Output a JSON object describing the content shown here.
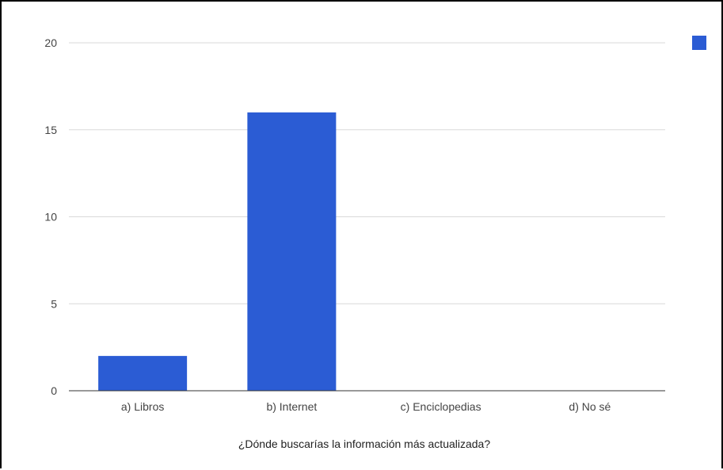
{
  "chart_data": {
    "type": "bar",
    "categories": [
      "a) Libros",
      "b) Internet",
      "c) Enciclopedias",
      "d) No sé"
    ],
    "series": [
      {
        "values": [
          2,
          16,
          0,
          0
        ],
        "color": "#2b5cd4"
      }
    ],
    "xlabel": "¿Dónde buscarías la información más actualizada?",
    "ylabel": "",
    "ylim": [
      0,
      20
    ],
    "yticks": [
      0,
      5,
      10,
      15,
      20
    ],
    "grid": true,
    "legend": "top-right",
    "colors": {
      "bar": "#2b5cd4",
      "grid": "#d9d9d9",
      "axis": "#333333",
      "tick_text": "#444444"
    }
  }
}
